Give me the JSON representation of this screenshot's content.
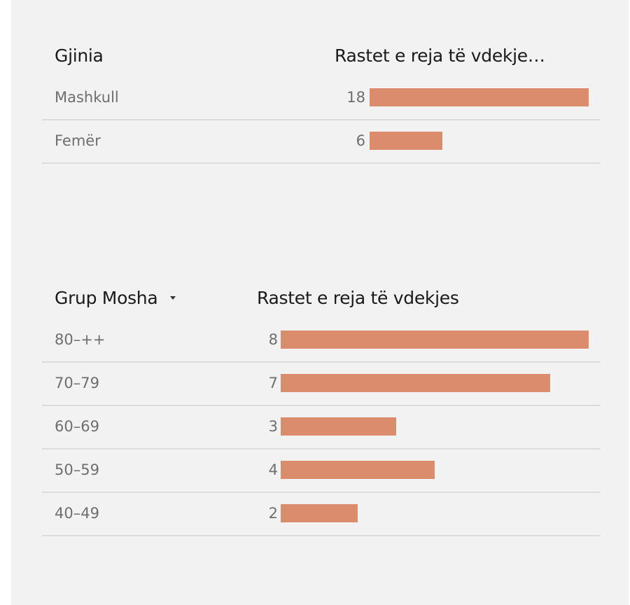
{
  "gender_table": {
    "col_category": "Gjinia",
    "col_value": "Rastet e reja të vdekje…"
  },
  "age_table": {
    "col_category": "Grup Mosha",
    "col_value": "Rastet e reja të vdekjes",
    "sort_icon": "caret-down-icon"
  },
  "colors": {
    "bar": "#db8c6c",
    "background": "#f2f2f2"
  },
  "chart_data": [
    {
      "type": "bar",
      "orientation": "horizontal",
      "categories": [
        "Mashkull",
        "Femër"
      ],
      "values": [
        18,
        6
      ],
      "xlim": [
        0,
        18
      ]
    },
    {
      "type": "bar",
      "orientation": "horizontal",
      "categories": [
        "80–++",
        "70–79",
        "60–69",
        "50–59",
        "40–49"
      ],
      "values": [
        8,
        7,
        3,
        4,
        2
      ],
      "xlim": [
        0,
        8
      ]
    }
  ]
}
